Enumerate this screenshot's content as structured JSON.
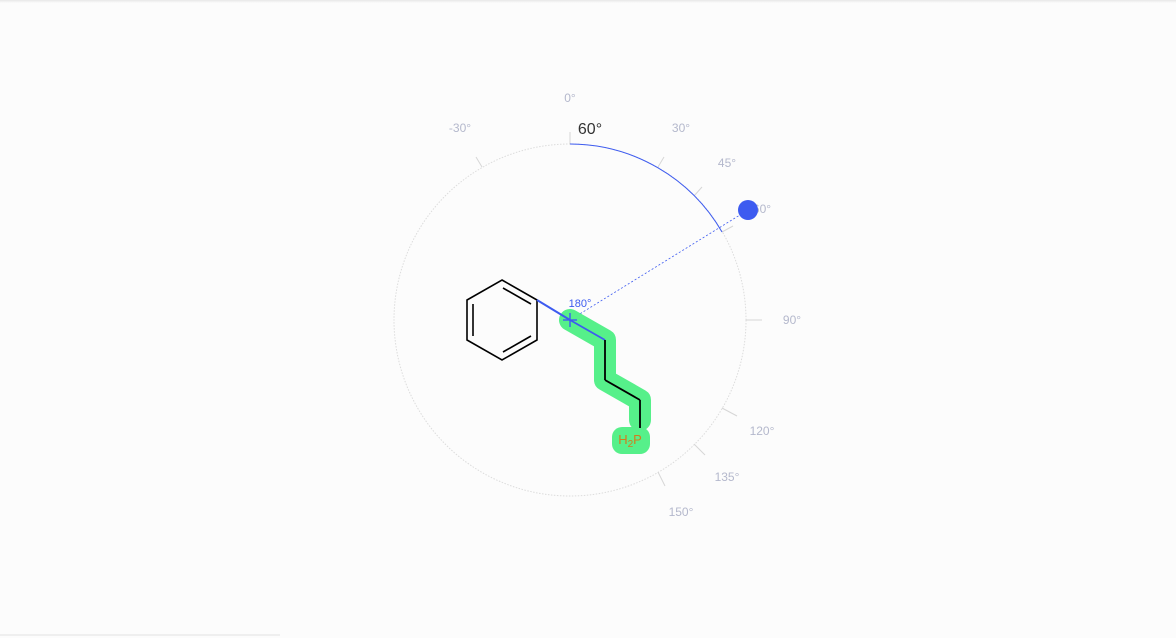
{
  "rotation_tool": {
    "current_angle_label": "60°",
    "bond_angle_label": "180°",
    "tick_labels": [
      "0°",
      "30°",
      "45°",
      "60°",
      "90°",
      "120°",
      "135°",
      "150°",
      "-30°"
    ],
    "accent_color": "#3d5bf0",
    "selection_color": "#56f08a",
    "handle_icon": "rotate-handle-icon",
    "center_icon": "crosshair-icon"
  },
  "molecule": {
    "atom_label": {
      "H": "H",
      "sub": "2",
      "P": "P"
    },
    "atom_color": "#d27c1e"
  }
}
